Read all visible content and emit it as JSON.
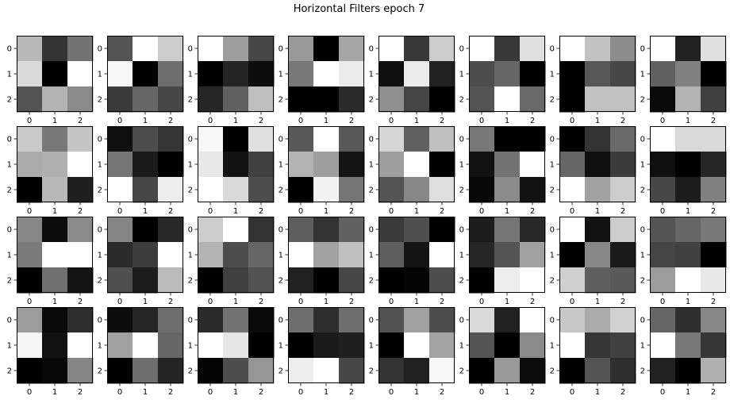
{
  "title": "Horizontal Filters epoch 7",
  "chart_data": {
    "type": "heatmap",
    "title": "Horizontal Filters epoch 7",
    "colormap": "gray",
    "value_range": [
      0,
      1
    ],
    "grid": false,
    "x_ticks": [
      "0",
      "1",
      "2"
    ],
    "y_ticks": [
      "0",
      "1",
      "2"
    ],
    "filters": [
      [
        [
          0.72,
          0.2,
          0.45
        ],
        [
          0.85,
          0.0,
          1.0
        ],
        [
          0.33,
          0.7,
          0.54
        ]
      ],
      [
        [
          0.33,
          1.0,
          0.8
        ],
        [
          0.97,
          0.0,
          0.43
        ],
        [
          0.23,
          0.4,
          0.28
        ]
      ],
      [
        [
          1.0,
          0.62,
          0.28
        ],
        [
          0.0,
          0.14,
          0.05
        ],
        [
          0.15,
          0.38,
          0.75
        ]
      ],
      [
        [
          0.6,
          0.0,
          0.65
        ],
        [
          0.47,
          1.0,
          0.92
        ],
        [
          0.0,
          0.0,
          0.17
        ]
      ],
      [
        [
          1.0,
          0.22,
          0.8
        ],
        [
          0.06,
          0.92,
          0.13
        ],
        [
          0.56,
          0.27,
          0.0
        ]
      ],
      [
        [
          1.0,
          0.22,
          0.88
        ],
        [
          0.3,
          0.4,
          0.0
        ],
        [
          0.33,
          1.0,
          0.41
        ]
      ],
      [
        [
          1.0,
          0.76,
          0.55
        ],
        [
          0.0,
          0.34,
          0.28
        ],
        [
          0.0,
          0.76,
          0.76
        ]
      ],
      [
        [
          1.0,
          0.13,
          0.88
        ],
        [
          0.38,
          0.5,
          0.0
        ],
        [
          0.04,
          0.7,
          0.25
        ]
      ],
      [
        [
          0.79,
          0.47,
          0.77
        ],
        [
          0.67,
          0.69,
          1.0
        ],
        [
          0.0,
          0.72,
          0.12
        ]
      ],
      [
        [
          0.06,
          0.3,
          0.21
        ],
        [
          0.46,
          0.1,
          0.0
        ],
        [
          1.0,
          0.28,
          0.93
        ]
      ],
      [
        [
          0.97,
          0.0,
          0.88
        ],
        [
          0.91,
          0.07,
          0.25
        ],
        [
          1.0,
          0.85,
          0.3
        ]
      ],
      [
        [
          0.35,
          1.0,
          0.35
        ],
        [
          0.7,
          0.62,
          0.08
        ],
        [
          0.0,
          0.95,
          0.46
        ]
      ],
      [
        [
          0.84,
          0.38,
          0.75
        ],
        [
          0.62,
          1.0,
          0.0
        ],
        [
          0.33,
          0.53,
          0.87
        ]
      ],
      [
        [
          0.47,
          0.0,
          0.0
        ],
        [
          0.07,
          0.45,
          1.0
        ],
        [
          0.03,
          0.54,
          0.07
        ]
      ],
      [
        [
          0.0,
          0.2,
          0.41
        ],
        [
          0.4,
          0.06,
          0.23
        ],
        [
          1.0,
          0.63,
          0.8
        ]
      ],
      [
        [
          1.0,
          0.85,
          0.85
        ],
        [
          0.06,
          0.0,
          0.15
        ],
        [
          0.28,
          0.11,
          0.5
        ]
      ],
      [
        [
          0.53,
          0.05,
          0.54
        ],
        [
          0.48,
          1.0,
          1.0
        ],
        [
          0.0,
          0.44,
          0.08
        ]
      ],
      [
        [
          0.52,
          0.0,
          0.16
        ],
        [
          0.17,
          0.24,
          1.0
        ],
        [
          0.31,
          0.11,
          0.73
        ]
      ],
      [
        [
          0.8,
          1.0,
          0.2
        ],
        [
          0.7,
          0.3,
          0.4
        ],
        [
          0.0,
          0.25,
          0.32
        ]
      ],
      [
        [
          0.37,
          0.2,
          0.38
        ],
        [
          1.0,
          0.63,
          0.75
        ],
        [
          0.13,
          0.0,
          0.28
        ]
      ],
      [
        [
          0.23,
          0.31,
          0.0
        ],
        [
          0.37,
          0.08,
          1.0
        ],
        [
          0.0,
          0.02,
          0.3
        ]
      ],
      [
        [
          0.11,
          0.46,
          0.16
        ],
        [
          0.15,
          0.33,
          0.63
        ],
        [
          0.0,
          0.93,
          1.0
        ]
      ],
      [
        [
          1.0,
          0.07,
          0.8
        ],
        [
          0.0,
          0.53,
          0.1
        ],
        [
          0.81,
          0.37,
          0.35
        ]
      ],
      [
        [
          0.33,
          0.4,
          0.47
        ],
        [
          0.27,
          0.25,
          0.0
        ],
        [
          0.61,
          1.0,
          0.91
        ]
      ],
      [
        [
          0.61,
          0.04,
          0.18
        ],
        [
          0.96,
          0.07,
          1.0
        ],
        [
          0.0,
          0.03,
          0.52
        ]
      ],
      [
        [
          0.05,
          0.15,
          0.43
        ],
        [
          0.63,
          1.0,
          0.4
        ],
        [
          0.0,
          0.43,
          0.14
        ]
      ],
      [
        [
          0.17,
          0.45,
          0.04
        ],
        [
          1.0,
          0.9,
          0.0
        ],
        [
          0.02,
          0.3,
          0.59
        ]
      ],
      [
        [
          0.43,
          0.18,
          0.43
        ],
        [
          0.0,
          0.1,
          0.12
        ],
        [
          0.93,
          1.0,
          0.28
        ]
      ],
      [
        [
          0.32,
          0.63,
          0.3
        ],
        [
          0.0,
          1.0,
          0.64
        ],
        [
          0.2,
          0.13,
          0.97
        ]
      ],
      [
        [
          0.85,
          0.13,
          1.0
        ],
        [
          0.33,
          0.0,
          0.54
        ],
        [
          0.0,
          0.6,
          0.05
        ]
      ],
      [
        [
          0.78,
          0.67,
          0.82
        ],
        [
          1.0,
          0.21,
          0.25
        ],
        [
          0.0,
          0.33,
          0.18
        ]
      ],
      [
        [
          0.4,
          0.18,
          0.53
        ],
        [
          1.0,
          0.47,
          0.21
        ],
        [
          0.13,
          0.0,
          0.69
        ]
      ]
    ]
  }
}
